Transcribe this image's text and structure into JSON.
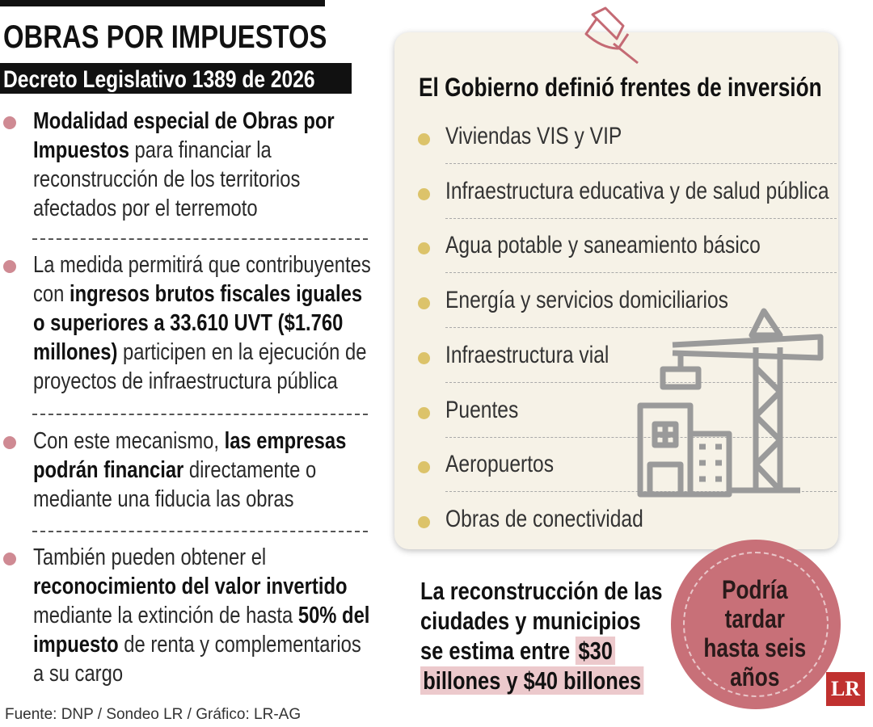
{
  "header": {
    "title": "OBRAS POR IMPUESTOS",
    "subtitle": "Decreto Legislativo 1389 de 2026"
  },
  "left_items": [
    [
      {
        "text": "Modalidad especial de Obras por Impuestos",
        "bold": true
      },
      {
        "text": " para financiar la reconstrucción de los territorios afectados por el terremoto",
        "bold": false
      }
    ],
    [
      {
        "text": "La medida permitirá que contribuyentes con ",
        "bold": false
      },
      {
        "text": "ingresos brutos fiscales iguales o superiores a 33.610 UVT ($1.760 millones)",
        "bold": true
      },
      {
        "text": " participen en la ejecución de proyectos de infraestructura pública",
        "bold": false
      }
    ],
    [
      {
        "text": "Con este mecanismo, ",
        "bold": false
      },
      {
        "text": "las empresas podrán financiar",
        "bold": true
      },
      {
        "text": " directamente o mediante una fiducia las obras",
        "bold": false
      }
    ],
    [
      {
        "text": "También pueden obtener el ",
        "bold": false
      },
      {
        "text": "reconocimiento del valor invertido",
        "bold": true
      },
      {
        "text": " mediante la extinción de hasta ",
        "bold": false
      },
      {
        "text": "50% del impuesto",
        "bold": true
      },
      {
        "text": " de renta y complementarios a su cargo",
        "bold": false
      }
    ]
  ],
  "panel": {
    "title": "El Gobierno definió frentes de inversión",
    "items": [
      "Viviendas VIS y VIP",
      "Infraestructura educativa y de salud pública",
      "Agua potable y saneamiento básico",
      "Energía y servicios domiciliarios",
      "Infraestructura vial",
      "Puentes",
      "Aeropuertos",
      "Obras de conectividad"
    ]
  },
  "estimate": [
    {
      "text": "La reconstrucción de las ciudades y municipios se estima entre ",
      "highlight": false
    },
    {
      "text": "$30 billones y $40 billones",
      "highlight": true
    }
  ],
  "badge": "Podría tardar hasta seis años",
  "logo": "LR",
  "source": "Fuente: DNP / Sondeo LR / Gráfico: LR-AG"
}
